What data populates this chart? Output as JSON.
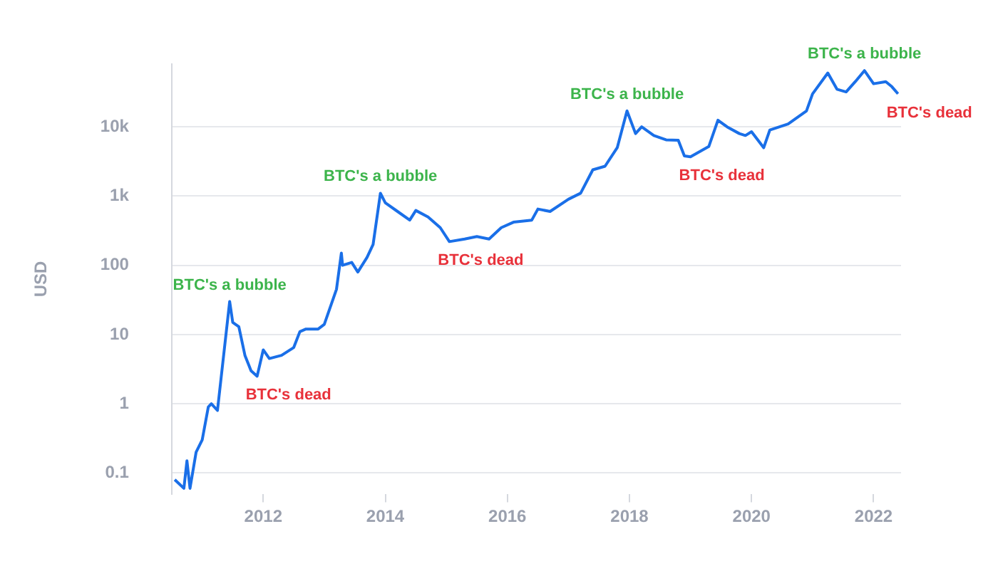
{
  "chart_data": {
    "type": "line",
    "ylabel": "USD",
    "log": "y",
    "grid": "y",
    "legend": false,
    "marker": "none",
    "line_style": "solid",
    "xlim": [
      2010.5,
      2022.45
    ],
    "xticks": [
      2012,
      2014,
      2016,
      2018,
      2020,
      2022
    ],
    "ylim": [
      0.05,
      80000
    ],
    "yticks": [
      0.1,
      1,
      10,
      100,
      {
        "value": 1000,
        "label": "1k"
      },
      {
        "value": 10000,
        "label": "10k"
      }
    ],
    "series": [
      {
        "color": "#1a6fe8",
        "x": [
          2010.55,
          2010.7,
          2010.75,
          2010.8,
          2010.9,
          2011.0,
          2011.1,
          2011.15,
          2011.25,
          2011.45,
          2011.5,
          2011.6,
          2011.7,
          2011.8,
          2011.9,
          2012.0,
          2012.1,
          2012.3,
          2012.5,
          2012.6,
          2012.7,
          2012.9,
          2013.0,
          2013.2,
          2013.28,
          2013.3,
          2013.45,
          2013.55,
          2013.7,
          2013.8,
          2013.92,
          2014.0,
          2014.2,
          2014.4,
          2014.5,
          2014.7,
          2014.9,
          2015.05,
          2015.3,
          2015.5,
          2015.7,
          2015.9,
          2016.1,
          2016.4,
          2016.5,
          2016.7,
          2017.0,
          2017.2,
          2017.4,
          2017.6,
          2017.8,
          2017.96,
          2018.1,
          2018.2,
          2018.4,
          2018.6,
          2018.8,
          2018.9,
          2019.0,
          2019.3,
          2019.45,
          2019.6,
          2019.8,
          2019.9,
          2020.0,
          2020.2,
          2020.3,
          2020.6,
          2020.9,
          2021.0,
          2021.25,
          2021.4,
          2021.55,
          2021.7,
          2021.85,
          2022.0,
          2022.2,
          2022.3,
          2022.4
        ],
        "values": [
          0.08,
          0.06,
          0.15,
          0.06,
          0.2,
          0.3,
          0.9,
          1,
          0.8,
          30,
          15,
          13,
          5,
          3,
          2.5,
          6,
          4.5,
          5,
          6.5,
          11,
          12,
          12,
          14,
          45,
          150,
          100,
          110,
          80,
          130,
          200,
          1100,
          800,
          600,
          450,
          620,
          500,
          350,
          220,
          240,
          260,
          240,
          350,
          420,
          450,
          650,
          600,
          900,
          1100,
          2400,
          2700,
          5000,
          17000,
          8000,
          10000,
          7500,
          6500,
          6400,
          3800,
          3700,
          5200,
          12500,
          10000,
          8000,
          7500,
          8500,
          5000,
          9000,
          11000,
          17000,
          30000,
          60000,
          35000,
          32000,
          45000,
          65000,
          42000,
          45000,
          38000,
          30000
        ]
      }
    ],
    "annotations": [
      {
        "text": "BTC's a bubble",
        "x": 2011.45,
        "y": 30
      },
      {
        "text": "BTC's dead",
        "x": 2011.9,
        "y": 2.5
      },
      {
        "text": "BTC's a bubble",
        "x": 2013.92,
        "y": 1100
      },
      {
        "text": "BTC's dead",
        "x": 2015.05,
        "y": 220
      },
      {
        "text": "BTC's a bubble",
        "x": 2017.96,
        "y": 17000
      },
      {
        "text": "BTC's dead",
        "x": 2019.0,
        "y": 3700
      },
      {
        "text": "BTC's a bubble",
        "x": 2021.85,
        "y": 65000
      },
      {
        "text": "BTC's dead",
        "x": 2022.4,
        "y": 30000
      }
    ]
  }
}
